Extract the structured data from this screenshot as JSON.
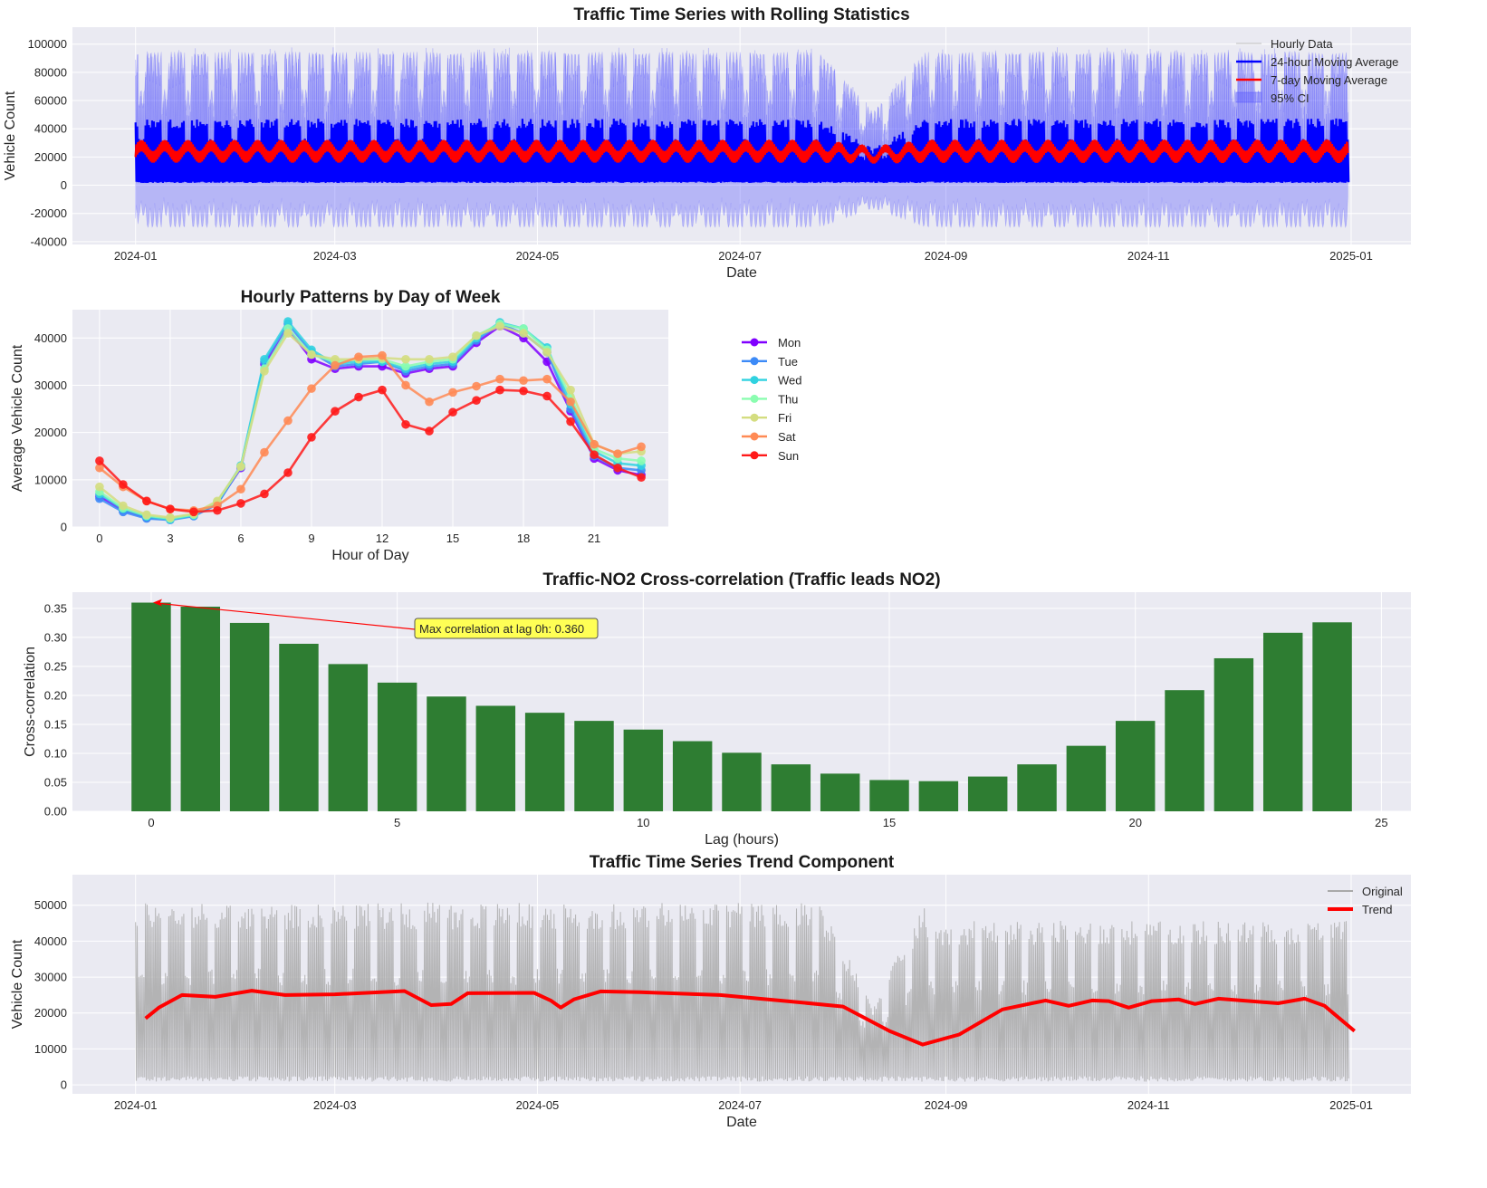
{
  "colors": {
    "axes_bg": "#eaeaf2",
    "grid": "#ffffff",
    "hourly": "#0000ff",
    "ma24": "#0000ff",
    "ma7d": "#ff0000",
    "ci": "#5555ff",
    "bars": "#2e7d32",
    "original": "#a9a9a9",
    "trend": "#ff0000",
    "annotation_fill": "#ffff55",
    "annotation_arrow": "#ff0000"
  },
  "chart_data": [
    {
      "id": "rolling",
      "type": "line",
      "title": "Traffic Time Series with Rolling Statistics",
      "xlabel": "Date",
      "ylabel": "Vehicle Count",
      "xlim": [
        "2023-12-13",
        "2025-01-19"
      ],
      "ylim": [
        -42000,
        112000
      ],
      "xticks": [
        "2024-01",
        "2024-03",
        "2024-05",
        "2024-07",
        "2024-09",
        "2024-11",
        "2025-01"
      ],
      "yticks": [
        -40000,
        -20000,
        0,
        20000,
        40000,
        60000,
        80000,
        100000
      ],
      "grid": true,
      "legend_position": "upper-right",
      "x_range": [
        "2024-01-01",
        "2024-12-31"
      ],
      "series": [
        {
          "name": "Hourly Data",
          "style": "thin-line",
          "color_key": "hourly",
          "weekday_peak": 85000,
          "weekend_peak": 55000,
          "night_min": 1500
        },
        {
          "name": "24-hour Moving Average",
          "style": "line",
          "color_key": "ma24",
          "envelope_low": 2000,
          "envelope_high": 45000
        },
        {
          "name": "7-day Moving Average",
          "style": "line",
          "color_key": "ma7d",
          "level": 24000,
          "envelope_low": 15000,
          "envelope_high": 32000
        },
        {
          "name": "95% CI",
          "style": "band",
          "color_key": "ci",
          "lower": -30000,
          "upper": 90000
        }
      ]
    },
    {
      "id": "hourly",
      "type": "line",
      "title": "Hourly Patterns by Day of Week",
      "xlabel": "Hour of Day",
      "ylabel": "Average Vehicle Count",
      "xlim": [
        -1.15,
        24.15
      ],
      "ylim": [
        0,
        46000
      ],
      "xticks": [
        0,
        3,
        6,
        9,
        12,
        15,
        18,
        21
      ],
      "yticks": [
        0,
        10000,
        20000,
        30000,
        40000
      ],
      "grid": true,
      "legend_position": "outside-right",
      "x": [
        0,
        1,
        2,
        3,
        4,
        5,
        6,
        7,
        8,
        9,
        10,
        11,
        12,
        13,
        14,
        15,
        16,
        17,
        18,
        19,
        20,
        21,
        22,
        23
      ],
      "series": [
        {
          "name": "Mon",
          "color": "#8000ff",
          "values": [
            6500,
            3500,
            2000,
            1800,
            2500,
            5000,
            12500,
            34500,
            42000,
            35500,
            33500,
            34000,
            34000,
            32500,
            33500,
            34000,
            39000,
            42500,
            40000,
            35000,
            24500,
            14500,
            12000,
            11000
          ]
        },
        {
          "name": "Tue",
          "color": "#3c8af7",
          "values": [
            6000,
            3200,
            1800,
            1500,
            2300,
            4800,
            12700,
            35000,
            43000,
            37000,
            34000,
            34500,
            35000,
            33000,
            34000,
            34500,
            39500,
            43000,
            41000,
            37000,
            25000,
            15000,
            12500,
            12000
          ]
        },
        {
          "name": "Wed",
          "color": "#30d2e0",
          "values": [
            7000,
            3800,
            2200,
            1600,
            2500,
            5200,
            13000,
            35500,
            43500,
            37500,
            34500,
            35000,
            35000,
            33500,
            34500,
            35000,
            40000,
            43300,
            42000,
            38000,
            26000,
            16000,
            13500,
            13000
          ]
        },
        {
          "name": "Thu",
          "color": "#8bfdb0",
          "values": [
            7500,
            4000,
            2400,
            1800,
            2600,
            5300,
            12800,
            33500,
            42000,
            36500,
            35000,
            35500,
            35500,
            34000,
            35000,
            35500,
            40500,
            43000,
            42000,
            37500,
            27500,
            16500,
            14500,
            14000
          ]
        },
        {
          "name": "Fri",
          "color": "#d4dd80",
          "values": [
            8500,
            4500,
            2600,
            2000,
            2800,
            5500,
            12800,
            33000,
            41000,
            36500,
            35500,
            35500,
            35800,
            35500,
            35500,
            36000,
            40500,
            42500,
            41000,
            37000,
            29000,
            17500,
            15500,
            16000
          ]
        },
        {
          "name": "Sat",
          "color": "#ff8a55",
          "values": [
            12500,
            8500,
            5500,
            3800,
            3500,
            4500,
            8000,
            15800,
            22500,
            29300,
            34200,
            36000,
            36300,
            30000,
            26500,
            28500,
            29800,
            31300,
            31000,
            31300,
            26500,
            17500,
            15500,
            17000
          ]
        },
        {
          "name": "Sun",
          "color": "#ff1a1a",
          "values": [
            14000,
            9000,
            5500,
            3800,
            3200,
            3500,
            5000,
            7000,
            11500,
            19000,
            24500,
            27500,
            29000,
            21700,
            20300,
            24300,
            26800,
            29000,
            28800,
            27700,
            22300,
            15300,
            12500,
            10500
          ]
        }
      ]
    },
    {
      "id": "xcorr",
      "type": "bar",
      "title": "Traffic-NO2 Cross-correlation (Traffic leads NO2)",
      "xlabel": "Lag (hours)",
      "ylabel": "Cross-correlation",
      "xlim": [
        -1.6,
        25.6
      ],
      "ylim": [
        0,
        0.378
      ],
      "xticks": [
        0,
        5,
        10,
        15,
        20,
        25
      ],
      "yticks": [
        0.0,
        0.05,
        0.1,
        0.15,
        0.2,
        0.25,
        0.3,
        0.35
      ],
      "grid": true,
      "categories": [
        0,
        1,
        2,
        3,
        4,
        5,
        6,
        7,
        8,
        9,
        10,
        11,
        12,
        13,
        14,
        15,
        16,
        17,
        18,
        19,
        20,
        21,
        22,
        23,
        24
      ],
      "values": [
        0.36,
        0.353,
        0.325,
        0.289,
        0.254,
        0.222,
        0.198,
        0.182,
        0.17,
        0.156,
        0.141,
        0.121,
        0.101,
        0.081,
        0.065,
        0.054,
        0.052,
        0.06,
        0.081,
        0.113,
        0.156,
        0.209,
        0.264,
        0.308,
        0.326
      ],
      "annotation": {
        "text": "Max correlation at lag 0h: 0.360",
        "lag": 0,
        "value": 0.36
      }
    },
    {
      "id": "trend",
      "type": "line",
      "title": "Traffic Time Series Trend Component",
      "xlabel": "Date",
      "ylabel": "Vehicle Count",
      "xlim": [
        "2023-12-13",
        "2025-01-19"
      ],
      "ylim": [
        -2500,
        58500
      ],
      "xticks": [
        "2024-01",
        "2024-03",
        "2024-05",
        "2024-07",
        "2024-09",
        "2024-11",
        "2025-01"
      ],
      "yticks": [
        0,
        10000,
        20000,
        30000,
        40000,
        50000
      ],
      "grid": true,
      "legend_position": "upper-right",
      "series": [
        {
          "name": "Original",
          "style": "line",
          "color_key": "original",
          "weekday_peak": 47000,
          "weekend_peak": 30000,
          "night_min": 1500
        },
        {
          "name": "Trend",
          "style": "thick-line",
          "color_key": "trend",
          "points": [
            [
              "2024-01-04",
              18500
            ],
            [
              "2024-01-08",
              21500
            ],
            [
              "2024-01-15",
              25000
            ],
            [
              "2024-01-25",
              24500
            ],
            [
              "2024-02-05",
              26200
            ],
            [
              "2024-02-15",
              25000
            ],
            [
              "2024-03-01",
              25200
            ],
            [
              "2024-03-22",
              26100
            ],
            [
              "2024-03-30",
              22200
            ],
            [
              "2024-04-05",
              22500
            ],
            [
              "2024-04-10",
              25500
            ],
            [
              "2024-04-30",
              25600
            ],
            [
              "2024-05-05",
              23500
            ],
            [
              "2024-05-08",
              21500
            ],
            [
              "2024-05-12",
              23800
            ],
            [
              "2024-05-20",
              26000
            ],
            [
              "2024-06-01",
              25800
            ],
            [
              "2024-06-25",
              25000
            ],
            [
              "2024-07-15",
              23300
            ],
            [
              "2024-08-01",
              21800
            ],
            [
              "2024-08-15",
              15000
            ],
            [
              "2024-08-25",
              11200
            ],
            [
              "2024-09-05",
              14000
            ],
            [
              "2024-09-18",
              21000
            ],
            [
              "2024-10-01",
              23500
            ],
            [
              "2024-10-08",
              22000
            ],
            [
              "2024-10-15",
              23500
            ],
            [
              "2024-10-20",
              23300
            ],
            [
              "2024-10-26",
              21500
            ],
            [
              "2024-11-02",
              23300
            ],
            [
              "2024-11-10",
              23800
            ],
            [
              "2024-11-15",
              22500
            ],
            [
              "2024-11-22",
              24000
            ],
            [
              "2024-12-10",
              22700
            ],
            [
              "2024-12-18",
              24000
            ],
            [
              "2024-12-24",
              22000
            ],
            [
              "2025-01-02",
              15000
            ]
          ]
        }
      ]
    }
  ]
}
